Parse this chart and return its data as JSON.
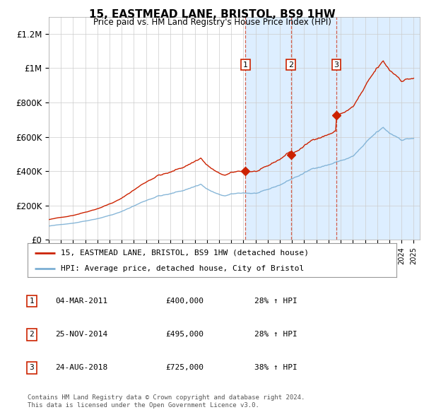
{
  "title": "15, EASTMEAD LANE, BRISTOL, BS9 1HW",
  "subtitle": "Price paid vs. HM Land Registry's House Price Index (HPI)",
  "hpi_color": "#7bafd4",
  "price_color": "#cc2200",
  "ylim": [
    0,
    1300000
  ],
  "yticks": [
    0,
    200000,
    400000,
    600000,
    800000,
    1000000,
    1200000
  ],
  "ytick_labels": [
    "£0",
    "£200K",
    "£400K",
    "£600K",
    "£800K",
    "£1M",
    "£1.2M"
  ],
  "sale_date_nums": [
    2011.17,
    2014.9,
    2018.65
  ],
  "sale_prices": [
    400000,
    495000,
    725000
  ],
  "sale_labels": [
    "1",
    "2",
    "3"
  ],
  "sale_dates_text": [
    "04-MAR-2011",
    "25-NOV-2014",
    "24-AUG-2018"
  ],
  "sale_prices_text": [
    "£400,000",
    "£495,000",
    "£725,000"
  ],
  "sale_hpi_text": [
    "28% ↑ HPI",
    "28% ↑ HPI",
    "38% ↑ HPI"
  ],
  "legend_line1": "15, EASTMEAD LANE, BRISTOL, BS9 1HW (detached house)",
  "legend_line2": "HPI: Average price, detached house, City of Bristol",
  "footer1": "Contains HM Land Registry data © Crown copyright and database right 2024.",
  "footer2": "This data is licensed under the Open Government Licence v3.0.",
  "xmin": 1995.0,
  "xmax": 2025.5,
  "plot_bg_left": "#ffffff",
  "plot_bg_right": "#ddeeff",
  "shade_start": 2011.17
}
